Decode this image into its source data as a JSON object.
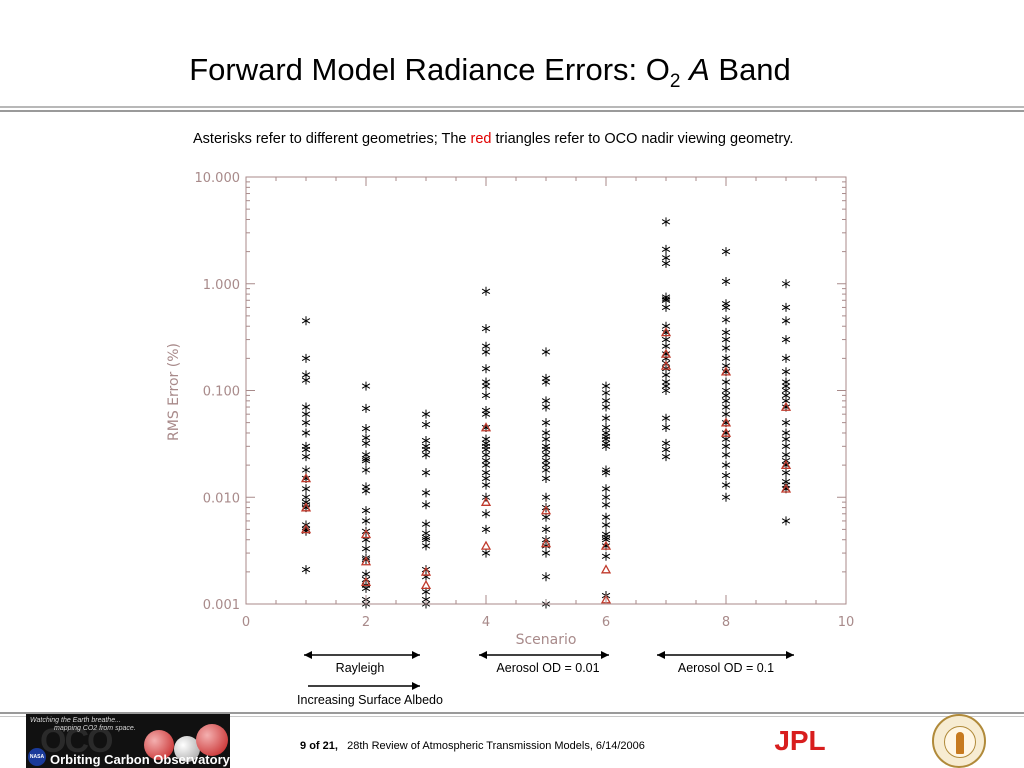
{
  "slide": {
    "title_main": "Forward Model Radiance Errors: O",
    "title_sub": "2",
    "title_italic": "A",
    "title_end": "Band",
    "caption_part1": "Asterisks refer to different geometries; The",
    "caption_red": "red",
    "caption_part2": "triangles refer to OCO nadir viewing geometry.",
    "footer_page": "9",
    "footer_of": "of",
    "footer_total": "21,",
    "footer_text": "28th Review of Atmospheric Transmission Models, 6/14/2006",
    "colors": {
      "red_text": "#e00000",
      "axis": "#a88a8a",
      "marker": "#000000",
      "red_marker": "#c0392b"
    }
  },
  "logos": {
    "oco_tagline1": "Watching the Earth breathe...",
    "oco_tagline2": "mapping CO2 from space.",
    "oco_big": "OCO",
    "nasa": "NASA",
    "oco_name": "Orbiting Carbon Observatory",
    "jpl": "JPL"
  },
  "annotations": {
    "rayleigh": "Rayleigh",
    "aerosol_001": "Aerosol OD = 0.01",
    "aerosol_01": "Aerosol OD = 0.1",
    "albedo": "Increasing Surface Albedo"
  },
  "chart_data": {
    "type": "scatter",
    "title": "",
    "xlabel": "Scenario",
    "ylabel": "RMS Error (%)",
    "xlim": [
      0,
      10
    ],
    "ylim": [
      0.001,
      10
    ],
    "yscale": "log",
    "grid": false,
    "x_ticks": [
      0,
      2,
      4,
      6,
      8,
      10
    ],
    "x_tick_labels": [
      "0",
      "2",
      "4",
      "6",
      "8",
      "10"
    ],
    "y_ticks": [
      0.001,
      0.01,
      0.1,
      1,
      10
    ],
    "y_tick_labels": [
      "0.001",
      "0.010",
      "0.100",
      "1.000",
      "10.000"
    ],
    "series": [
      {
        "marker": "asterisk",
        "color": "#000000",
        "x": [
          1,
          1,
          1,
          1,
          1,
          1,
          1,
          1,
          1,
          1,
          1,
          1,
          1,
          1,
          1,
          1,
          1,
          1,
          1,
          1,
          1,
          1,
          2,
          2,
          2,
          2,
          2,
          2,
          2,
          2,
          2,
          2,
          2,
          2,
          2,
          2,
          2,
          2,
          2,
          2,
          2,
          2,
          2,
          2,
          2,
          2,
          3,
          3,
          3,
          3,
          3,
          3,
          3,
          3,
          3,
          3,
          3,
          3,
          3,
          3,
          3,
          3,
          3,
          3,
          3,
          4,
          4,
          4,
          4,
          4,
          4,
          4,
          4,
          4,
          4,
          4,
          4,
          4,
          4,
          4,
          4,
          4,
          4,
          4,
          4,
          4,
          4,
          4,
          4,
          4,
          5,
          5,
          5,
          5,
          5,
          5,
          5,
          5,
          5,
          5,
          5,
          5,
          5,
          5,
          5,
          5,
          5,
          5,
          5,
          5,
          5,
          5,
          5,
          5,
          6,
          6,
          6,
          6,
          6,
          6,
          6,
          6,
          6,
          6,
          6,
          6,
          6,
          6,
          6,
          6,
          6,
          6,
          6,
          6,
          6,
          6,
          6,
          6,
          7,
          7,
          7,
          7,
          7,
          7,
          7,
          7,
          7,
          7,
          7,
          7,
          7,
          7,
          7,
          7,
          7,
          7,
          7,
          7,
          7,
          7,
          7,
          7,
          7,
          8,
          8,
          8,
          8,
          8,
          8,
          8,
          8,
          8,
          8,
          8,
          8,
          8,
          8,
          8,
          8,
          8,
          8,
          8,
          8,
          8,
          8,
          8,
          8,
          8,
          8,
          9,
          9,
          9,
          9,
          9,
          9,
          9,
          9,
          9,
          9,
          9,
          9,
          9,
          9,
          9,
          9,
          9,
          9,
          9,
          9,
          9,
          9,
          9,
          9
        ],
        "y": [
          0.45,
          0.2,
          0.14,
          0.125,
          0.07,
          0.06,
          0.05,
          0.04,
          0.03,
          0.028,
          0.024,
          0.018,
          0.015,
          0.012,
          0.01,
          0.009,
          0.008,
          0.0085,
          0.0055,
          0.005,
          0.0048,
          0.0021,
          0.11,
          0.068,
          0.044,
          0.036,
          0.032,
          0.025,
          0.023,
          0.022,
          0.018,
          0.0125,
          0.0115,
          0.0075,
          0.006,
          0.0048,
          0.004,
          0.0033,
          0.0027,
          0.0026,
          0.0019,
          0.0015,
          0.0014,
          0.001,
          0.0011,
          0.0017,
          0.06,
          0.048,
          0.034,
          0.03,
          0.028,
          0.025,
          0.017,
          0.011,
          0.0085,
          0.0056,
          0.0046,
          0.0042,
          0.004,
          0.0035,
          0.0021,
          0.0018,
          0.0013,
          0.0011,
          0.001,
          0.85,
          0.38,
          0.26,
          0.23,
          0.16,
          0.12,
          0.11,
          0.09,
          0.065,
          0.06,
          0.045,
          0.035,
          0.032,
          0.03,
          0.028,
          0.025,
          0.022,
          0.02,
          0.017,
          0.015,
          0.013,
          0.01,
          0.007,
          0.005,
          0.003,
          0.23,
          0.13,
          0.12,
          0.08,
          0.07,
          0.05,
          0.04,
          0.035,
          0.03,
          0.028,
          0.025,
          0.022,
          0.02,
          0.018,
          0.015,
          0.01,
          0.008,
          0.0065,
          0.005,
          0.004,
          0.0035,
          0.003,
          0.0018,
          0.001,
          0.11,
          0.095,
          0.08,
          0.07,
          0.055,
          0.045,
          0.04,
          0.037,
          0.035,
          0.032,
          0.03,
          0.018,
          0.017,
          0.012,
          0.01,
          0.0085,
          0.0065,
          0.0055,
          0.0045,
          0.0042,
          0.004,
          0.0035,
          0.0028,
          0.0012,
          3.8,
          2.1,
          1.75,
          1.55,
          0.75,
          0.72,
          0.7,
          0.6,
          0.4,
          0.35,
          0.3,
          0.26,
          0.22,
          0.2,
          0.18,
          0.16,
          0.14,
          0.12,
          0.11,
          0.1,
          0.055,
          0.045,
          0.032,
          0.028,
          0.024,
          2.0,
          1.05,
          0.65,
          0.6,
          0.46,
          0.35,
          0.3,
          0.25,
          0.2,
          0.17,
          0.15,
          0.12,
          0.1,
          0.09,
          0.08,
          0.07,
          0.06,
          0.05,
          0.04,
          0.035,
          0.03,
          0.025,
          0.02,
          0.016,
          0.013,
          0.01,
          1.0,
          0.6,
          0.45,
          0.3,
          0.2,
          0.15,
          0.12,
          0.11,
          0.1,
          0.09,
          0.08,
          0.07,
          0.05,
          0.04,
          0.035,
          0.03,
          0.025,
          0.022,
          0.02,
          0.017,
          0.014,
          0.013,
          0.012,
          0.006
        ]
      },
      {
        "marker": "triangle",
        "color": "#c0392b",
        "x": [
          1,
          1,
          1,
          2,
          2,
          2,
          3,
          3,
          4,
          4,
          4,
          5,
          5,
          6,
          6,
          6,
          7,
          7,
          7,
          8,
          8,
          8,
          9,
          9,
          9
        ],
        "y": [
          0.015,
          0.008,
          0.005,
          0.0045,
          0.0025,
          0.0016,
          0.002,
          0.0015,
          0.045,
          0.009,
          0.0035,
          0.0075,
          0.0037,
          0.0035,
          0.0021,
          0.0011,
          0.35,
          0.22,
          0.17,
          0.15,
          0.05,
          0.04,
          0.07,
          0.02,
          0.012
        ]
      }
    ]
  }
}
